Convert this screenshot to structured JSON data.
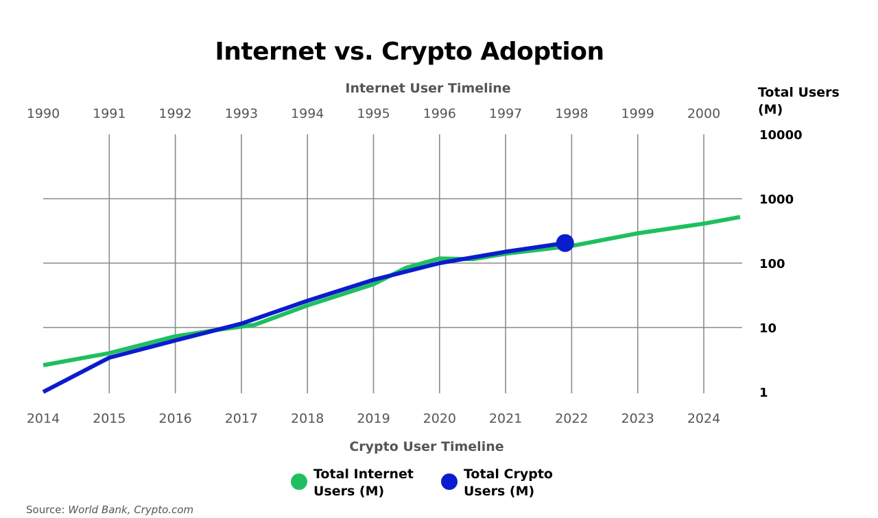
{
  "chart_data": {
    "type": "line",
    "title": "Internet vs. Crypto Adoption",
    "top_axis_title": "Internet User Timeline",
    "bottom_axis_title": "Crypto User Timeline",
    "ylabel": "Total Users (M)",
    "ylabel_lines": [
      "Total Users",
      "(M)"
    ],
    "yscale": "log",
    "ylim": [
      1,
      10000
    ],
    "y_ticks": [
      10000,
      1000,
      100,
      10,
      1
    ],
    "y_tick_labels": [
      "10000",
      "1000",
      "100",
      "10",
      "1"
    ],
    "grid": true,
    "top_x_ticks": [
      "1990",
      "1991",
      "1992",
      "1993",
      "1994",
      "1995",
      "1996",
      "1997",
      "1998",
      "1999",
      "2000"
    ],
    "bottom_x_ticks": [
      "2014",
      "2015",
      "2016",
      "2017",
      "2018",
      "2019",
      "2020",
      "2021",
      "2022",
      "2023",
      "2024"
    ],
    "legend_position": "bottom-center",
    "series": [
      {
        "name": "Total Internet Users (M)",
        "name_lines": [
          "Total Internet",
          "Users (M)"
        ],
        "color": "#1fbf5f",
        "x_axis": "top",
        "x": [
          1990,
          1991,
          1992,
          1992.7,
          1993.2,
          1994,
          1995,
          1995.5,
          1996,
          1996.5,
          1997,
          1998,
          1999,
          2000,
          2000.55
        ],
        "y": [
          2.6,
          4,
          7.3,
          9.4,
          11,
          22,
          47,
          85,
          118,
          115,
          140,
          185,
          290,
          410,
          520
        ]
      },
      {
        "name": "Total Crypto Users (M)",
        "name_lines": [
          "Total Crypto",
          "Users (M)"
        ],
        "color": "#0a1ccc",
        "x_axis": "bottom",
        "x": [
          2014,
          2015,
          2016,
          2017,
          2018,
          2019,
          2020,
          2021,
          2021.9
        ],
        "y": [
          1.0,
          3.4,
          6.3,
          11.5,
          26,
          55,
          100,
          150,
          205
        ],
        "marker": {
          "x": 2021.9,
          "y": 205
        }
      }
    ]
  },
  "source": {
    "prefix": "Source: ",
    "text": "World Bank, Crypto.com"
  }
}
